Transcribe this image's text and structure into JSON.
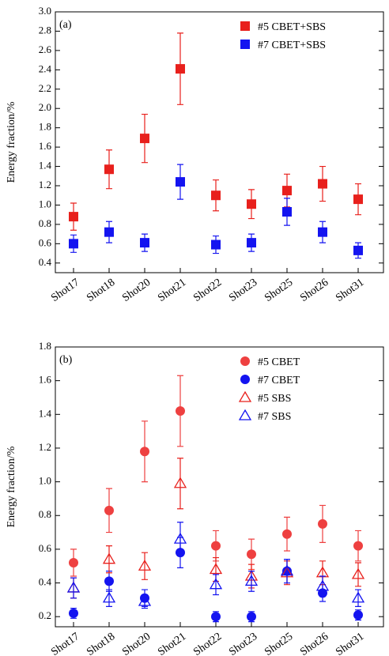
{
  "chart_data": [
    {
      "type": "scatter",
      "panel_label": "(a)",
      "y_label": "Energy fraction/%",
      "categories": [
        "Shot17",
        "Shot18",
        "Shot20",
        "Shot21",
        "Shot22",
        "Shot23",
        "Shot25",
        "Shot26",
        "Shot31"
      ],
      "ylim": [
        0.3,
        3.0
      ],
      "yticks": [
        0.4,
        0.6,
        0.8,
        {
          "value": 1,
          "label": "1.0"
        },
        1.2,
        1.4,
        1.6,
        1.8,
        {
          "value": 2,
          "label": "2.0"
        },
        2.2,
        2.4,
        2.6,
        2.8,
        {
          "value": 3,
          "label": "3.0"
        }
      ],
      "legend": "upper right",
      "series": [
        {
          "name": "#5 CBET+SBS",
          "color": "#e8201c",
          "marker": "square",
          "values": [
            0.88,
            1.37,
            1.69,
            2.41,
            1.1,
            1.01,
            1.15,
            1.22,
            1.06
          ],
          "errors": [
            0.14,
            0.2,
            0.25,
            0.37,
            0.16,
            0.15,
            0.17,
            0.18,
            0.16
          ]
        },
        {
          "name": "#7 CBET+SBS",
          "color": "#1414f0",
          "marker": "square",
          "values": [
            0.6,
            0.72,
            0.61,
            1.24,
            0.59,
            0.61,
            0.93,
            0.72,
            0.53
          ],
          "errors": [
            0.09,
            0.11,
            0.09,
            0.18,
            0.09,
            0.09,
            0.14,
            0.11,
            0.08
          ]
        }
      ]
    },
    {
      "type": "scatter",
      "panel_label": "(b)",
      "y_label": "Energy fraction/%",
      "categories": [
        "Shot17",
        "Shot18",
        "Shot20",
        "Shot21",
        "Shot22",
        "Shot23",
        "Shot25",
        "Shot26",
        "Shot31"
      ],
      "ylim": [
        0.14,
        1.8
      ],
      "yticks": [
        0.2,
        0.4,
        0.6,
        0.8,
        {
          "value": 1,
          "label": "1.0"
        },
        1.2,
        1.4,
        1.6,
        1.8
      ],
      "legend": "upper right",
      "series": [
        {
          "name": "#5 CBET",
          "color": "#ee4040",
          "marker": "circle",
          "values": [
            0.52,
            0.83,
            1.18,
            1.42,
            0.62,
            0.57,
            0.69,
            0.75,
            0.62
          ],
          "errors": [
            0.08,
            0.13,
            0.18,
            0.21,
            0.09,
            0.09,
            0.1,
            0.11,
            0.09
          ]
        },
        {
          "name": "#7 CBET",
          "color": "#1414f0",
          "marker": "circle",
          "values": [
            0.22,
            0.41,
            0.31,
            0.58,
            0.2,
            0.2,
            0.47,
            0.34,
            0.21
          ],
          "errors": [
            0.03,
            0.06,
            0.05,
            0.09,
            0.03,
            0.03,
            0.07,
            0.05,
            0.03
          ]
        },
        {
          "name": "#5 SBS",
          "color": "#e8201c",
          "marker": "triangle-open",
          "values": [
            0.37,
            0.54,
            0.5,
            0.99,
            0.48,
            0.44,
            0.46,
            0.46,
            0.45
          ],
          "errors": [
            0.06,
            0.08,
            0.08,
            0.15,
            0.07,
            0.07,
            0.07,
            0.07,
            0.07
          ]
        },
        {
          "name": "#7 SBS",
          "color": "#1414f0",
          "marker": "triangle-open",
          "values": [
            0.37,
            0.31,
            0.29,
            0.66,
            0.39,
            0.41,
            0.47,
            0.38,
            0.31
          ],
          "errors": [
            0.06,
            0.05,
            0.04,
            0.1,
            0.06,
            0.06,
            0.07,
            0.06,
            0.05
          ]
        }
      ]
    }
  ]
}
